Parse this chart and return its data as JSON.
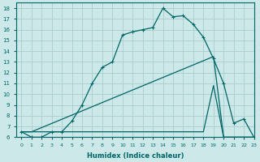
{
  "xlabel": "Humidex (Indice chaleur)",
  "ylabel": "",
  "bg_color": "#cce8e8",
  "grid_color": "#aacccc",
  "line_color": "#006666",
  "xlim": [
    -0.5,
    23
  ],
  "ylim": [
    6,
    18.5
  ],
  "yticks": [
    6,
    7,
    8,
    9,
    10,
    11,
    12,
    13,
    14,
    15,
    16,
    17,
    18
  ],
  "xticks": [
    0,
    1,
    2,
    3,
    4,
    5,
    6,
    7,
    8,
    9,
    10,
    11,
    12,
    13,
    14,
    15,
    16,
    17,
    18,
    19,
    20,
    21,
    22,
    23
  ],
  "line1_x": [
    0,
    1,
    2,
    3,
    4,
    5,
    6,
    7,
    8,
    9,
    10,
    11,
    12,
    13,
    14,
    15,
    16,
    17,
    18,
    19,
    20,
    21,
    22,
    23
  ],
  "line1_y": [
    6.5,
    6.0,
    6.0,
    6.5,
    6.5,
    7.5,
    9.0,
    11.0,
    12.5,
    13.0,
    15.5,
    15.8,
    16.0,
    16.2,
    18.0,
    17.2,
    17.3,
    16.5,
    15.3,
    13.3,
    11.0,
    7.3,
    7.7,
    6.0
  ],
  "line2_x": [
    0,
    1,
    19,
    20,
    21,
    22,
    23
  ],
  "line2_y": [
    6.5,
    6.5,
    13.5,
    6.0,
    6.0,
    6.0,
    6.0
  ],
  "line3_x": [
    0,
    1,
    2,
    3,
    4,
    5,
    6,
    7,
    8,
    9,
    10,
    11,
    12,
    13,
    14,
    15,
    16,
    17,
    18,
    19,
    20,
    21,
    22,
    23
  ],
  "line3_y": [
    6.5,
    6.5,
    6.5,
    6.5,
    6.5,
    6.5,
    6.5,
    6.5,
    6.5,
    6.5,
    6.5,
    6.5,
    6.5,
    6.5,
    6.5,
    6.5,
    6.5,
    6.5,
    6.5,
    10.8,
    6.0,
    6.0,
    6.0,
    6.0
  ]
}
